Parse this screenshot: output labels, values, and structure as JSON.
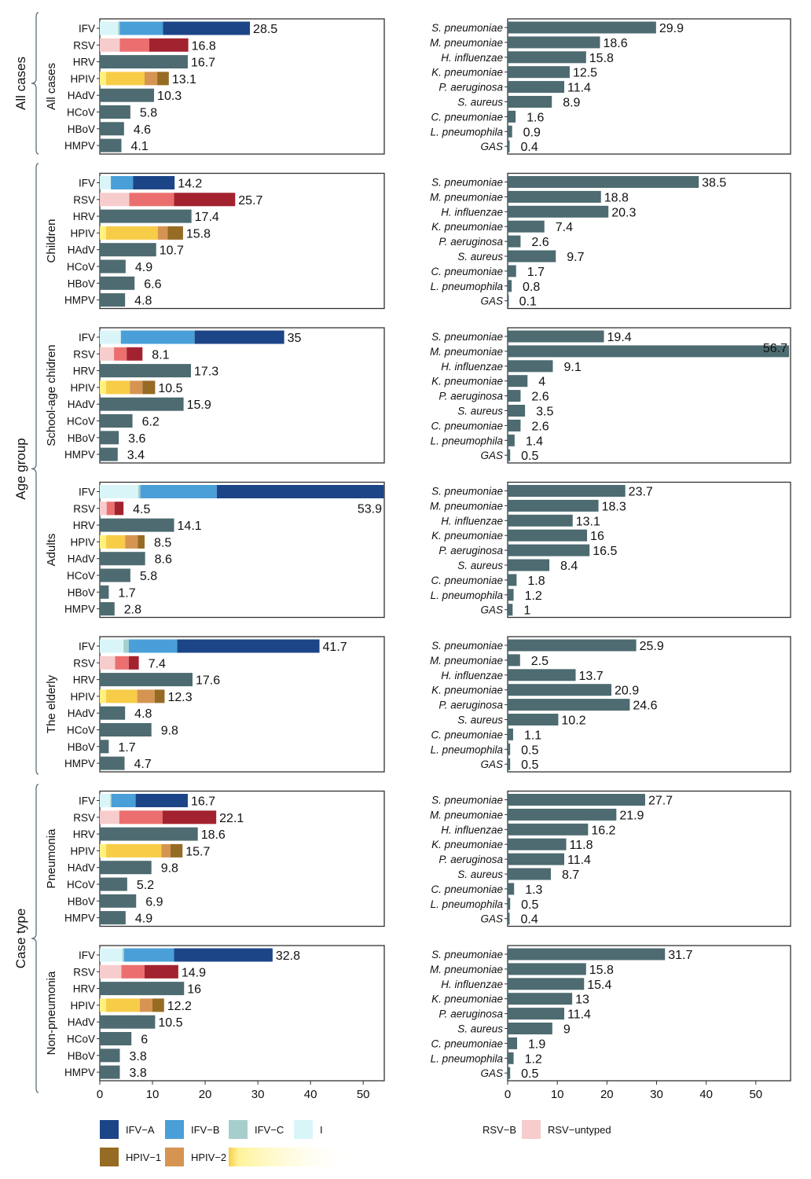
{
  "group_labels": {
    "all_cases": "All cases",
    "age_group": "Age group",
    "case_type": "Case type"
  },
  "panels": [
    {
      "label": "All cases",
      "viruses": [
        {
          "name": "IFV",
          "total": 28.5,
          "parts": {
            "untyped": 3.5,
            "c": 0.3,
            "b": 8.2,
            "a": 16.5
          }
        },
        {
          "name": "RSV",
          "total": 16.8,
          "parts": {
            "untyped": 3.8,
            "a": 5.6,
            "b": 7.4
          }
        },
        {
          "name": "HRV",
          "total": 16.7
        },
        {
          "name": "HPIV",
          "total": 13.1,
          "parts": {
            "untyped": 1.2,
            "p3": 7.3,
            "p2": 2.4,
            "p1": 2.2
          }
        },
        {
          "name": "HAdV",
          "total": 10.3
        },
        {
          "name": "HCoV",
          "total": 5.8
        },
        {
          "name": "HBoV",
          "total": 4.6
        },
        {
          "name": "HMPV",
          "total": 4.1
        }
      ],
      "bacteria": [
        29.9,
        18.6,
        15.8,
        12.5,
        11.4,
        8.9,
        1.6,
        0.9,
        0.4
      ]
    },
    {
      "label": "Children",
      "viruses": [
        {
          "name": "IFV",
          "total": 14.2,
          "parts": {
            "untyped": 2.1,
            "b": 4.2,
            "a": 7.9
          }
        },
        {
          "name": "RSV",
          "total": 25.7,
          "parts": {
            "untyped": 5.6,
            "a": 8.5,
            "b": 11.6
          }
        },
        {
          "name": "HRV",
          "total": 17.4
        },
        {
          "name": "HPIV",
          "total": 15.8,
          "parts": {
            "untyped": 1.2,
            "p3": 9.8,
            "p2": 1.9,
            "p1": 2.9
          }
        },
        {
          "name": "HAdV",
          "total": 10.7
        },
        {
          "name": "HCoV",
          "total": 4.9
        },
        {
          "name": "HBoV",
          "total": 6.6
        },
        {
          "name": "HMPV",
          "total": 4.8
        }
      ],
      "bacteria": [
        38.5,
        18.8,
        20.3,
        7.4,
        2.6,
        9.7,
        1.7,
        0.8,
        0.1
      ]
    },
    {
      "label": "School-age chidren",
      "viruses": [
        {
          "name": "IFV",
          "total": 35,
          "parts": {
            "untyped": 4.0,
            "b": 14.0,
            "a": 17.0
          }
        },
        {
          "name": "RSV",
          "total": 8.1,
          "parts": {
            "untyped": 2.7,
            "a": 2.4,
            "b": 3.0
          }
        },
        {
          "name": "HRV",
          "total": 17.3
        },
        {
          "name": "HPIV",
          "total": 10.5,
          "parts": {
            "untyped": 1.2,
            "p3": 4.5,
            "p2": 2.4,
            "p1": 2.4
          }
        },
        {
          "name": "HAdV",
          "total": 15.9
        },
        {
          "name": "HCoV",
          "total": 6.2
        },
        {
          "name": "HBoV",
          "total": 3.6
        },
        {
          "name": "HMPV",
          "total": 3.4
        }
      ],
      "bacteria": [
        19.4,
        56.7,
        9.1,
        4,
        2.6,
        3.5,
        2.6,
        1.4,
        0.5
      ]
    },
    {
      "label": "Adults",
      "viruses": [
        {
          "name": "IFV",
          "total": 53.9,
          "parts": {
            "untyped": 7.3,
            "c": 0.4,
            "b": 14.5,
            "a": 31.7
          }
        },
        {
          "name": "RSV",
          "total": 4.5,
          "parts": {
            "untyped": 1.3,
            "a": 1.5,
            "b": 1.7
          }
        },
        {
          "name": "HRV",
          "total": 14.1
        },
        {
          "name": "HPIV",
          "total": 8.5,
          "parts": {
            "untyped": 1.2,
            "p3": 3.6,
            "p2": 2.4,
            "p1": 1.3
          }
        },
        {
          "name": "HAdV",
          "total": 8.6
        },
        {
          "name": "HCoV",
          "total": 5.8
        },
        {
          "name": "HBoV",
          "total": 1.7
        },
        {
          "name": "HMPV",
          "total": 2.8
        }
      ],
      "bacteria": [
        23.7,
        18.3,
        13.1,
        16,
        16.5,
        8.4,
        1.8,
        1.2,
        1
      ]
    },
    {
      "label": "The elderly",
      "viruses": [
        {
          "name": "IFV",
          "total": 41.7,
          "parts": {
            "untyped": 4.5,
            "c": 1.0,
            "b": 9.2,
            "a": 27.0
          }
        },
        {
          "name": "RSV",
          "total": 7.4,
          "parts": {
            "untyped": 2.9,
            "a": 2.6,
            "b": 1.9
          }
        },
        {
          "name": "HRV",
          "total": 17.6
        },
        {
          "name": "HPIV",
          "total": 12.3,
          "parts": {
            "untyped": 1.2,
            "p3": 5.9,
            "p2": 3.3,
            "p1": 1.9
          }
        },
        {
          "name": "HAdV",
          "total": 4.8
        },
        {
          "name": "HCoV",
          "total": 9.8
        },
        {
          "name": "HBoV",
          "total": 1.7
        },
        {
          "name": "HMPV",
          "total": 4.7
        }
      ],
      "bacteria": [
        25.9,
        2.5,
        13.7,
        20.9,
        24.6,
        10.2,
        1.1,
        0.5,
        0.5
      ]
    },
    {
      "label": "Pneumonia",
      "viruses": [
        {
          "name": "IFV",
          "total": 16.7,
          "parts": {
            "untyped": 2.0,
            "c": 0.2,
            "b": 4.6,
            "a": 9.9
          }
        },
        {
          "name": "RSV",
          "total": 22.1,
          "parts": {
            "untyped": 3.7,
            "a": 8.2,
            "b": 10.2
          }
        },
        {
          "name": "HRV",
          "total": 18.6
        },
        {
          "name": "HPIV",
          "total": 15.7,
          "parts": {
            "untyped": 1.2,
            "p3": 10.5,
            "p2": 1.7,
            "p1": 2.3
          }
        },
        {
          "name": "HAdV",
          "total": 9.8
        },
        {
          "name": "HCoV",
          "total": 5.2
        },
        {
          "name": "HBoV",
          "total": 6.9
        },
        {
          "name": "HMPV",
          "total": 4.9
        }
      ],
      "bacteria": [
        27.7,
        21.9,
        16.2,
        11.8,
        11.4,
        8.7,
        1.3,
        0.5,
        0.4
      ]
    },
    {
      "label": "Non-pneumonia",
      "viruses": [
        {
          "name": "IFV",
          "total": 32.8,
          "parts": {
            "untyped": 4.3,
            "c": 0.3,
            "b": 9.5,
            "a": 18.7
          }
        },
        {
          "name": "RSV",
          "total": 14.9,
          "parts": {
            "untyped": 4.1,
            "a": 4.4,
            "b": 6.4
          }
        },
        {
          "name": "HRV",
          "total": 16
        },
        {
          "name": "HPIV",
          "total": 12.2,
          "parts": {
            "untyped": 1.2,
            "p3": 6.4,
            "p2": 2.4,
            "p1": 2.2
          }
        },
        {
          "name": "HAdV",
          "total": 10.5
        },
        {
          "name": "HCoV",
          "total": 6
        },
        {
          "name": "HBoV",
          "total": 3.8
        },
        {
          "name": "HMPV",
          "total": 3.8
        }
      ],
      "bacteria": [
        31.7,
        15.8,
        15.4,
        13,
        11.4,
        9,
        1.9,
        1.2,
        0.5
      ]
    }
  ],
  "chart_data": {
    "type": "bar",
    "orientation": "horizontal",
    "stacked": true,
    "virus_axis": {
      "xlim": [
        0,
        54
      ],
      "ticks": [
        0,
        10,
        20,
        30,
        40,
        50
      ]
    },
    "bacteria_axis": {
      "xlim": [
        0,
        57
      ],
      "ticks": [
        0,
        10,
        20,
        30,
        40,
        50
      ]
    },
    "virus_categories": [
      "IFV",
      "RSV",
      "HRV",
      "HPIV",
      "HAdV",
      "HCoV",
      "HBoV",
      "HMPV"
    ],
    "bacteria_categories": [
      "S. pneumoniae",
      "M. pneumoniae",
      "H. influenzae",
      "K. pneumoniae",
      "P. aeruginosa",
      "S. aureus",
      "C. pneumoniae",
      "L. pneumophila",
      "GAS"
    ],
    "colors": {
      "plain": "#4d6b70",
      "a": "#1c4587",
      "b": "#4a9fd8",
      "c": "#a6cfcc",
      "untyped": "#d9f5f8",
      "rsv_a": "#eb6f6f",
      "rsv_b": "#a3222f",
      "rsv_untyped": "#f7cccc",
      "p1": "#966b24",
      "p2": "#d69452",
      "p3": "#f7cc47",
      "p_untyped": "#fff080",
      "frame": "#333333",
      "bracket": "#5a6f78"
    }
  },
  "legend": {
    "items": [
      {
        "label": "IFV−A",
        "color": "#1c4587"
      },
      {
        "label": "IFV−B",
        "color": "#4a9fd8"
      },
      {
        "label": "IFV−C",
        "color": "#a6cfcc"
      },
      {
        "label": "I",
        "color": "#d9f5f8"
      },
      {
        "label": "RSV−B",
        "color": null
      },
      {
        "label": "RSV−untyped",
        "color": "#f7cccc"
      },
      {
        "label": "HPIV−1",
        "color": "#966b24"
      },
      {
        "label": "HPIV−2",
        "color": "#d69452"
      }
    ]
  }
}
